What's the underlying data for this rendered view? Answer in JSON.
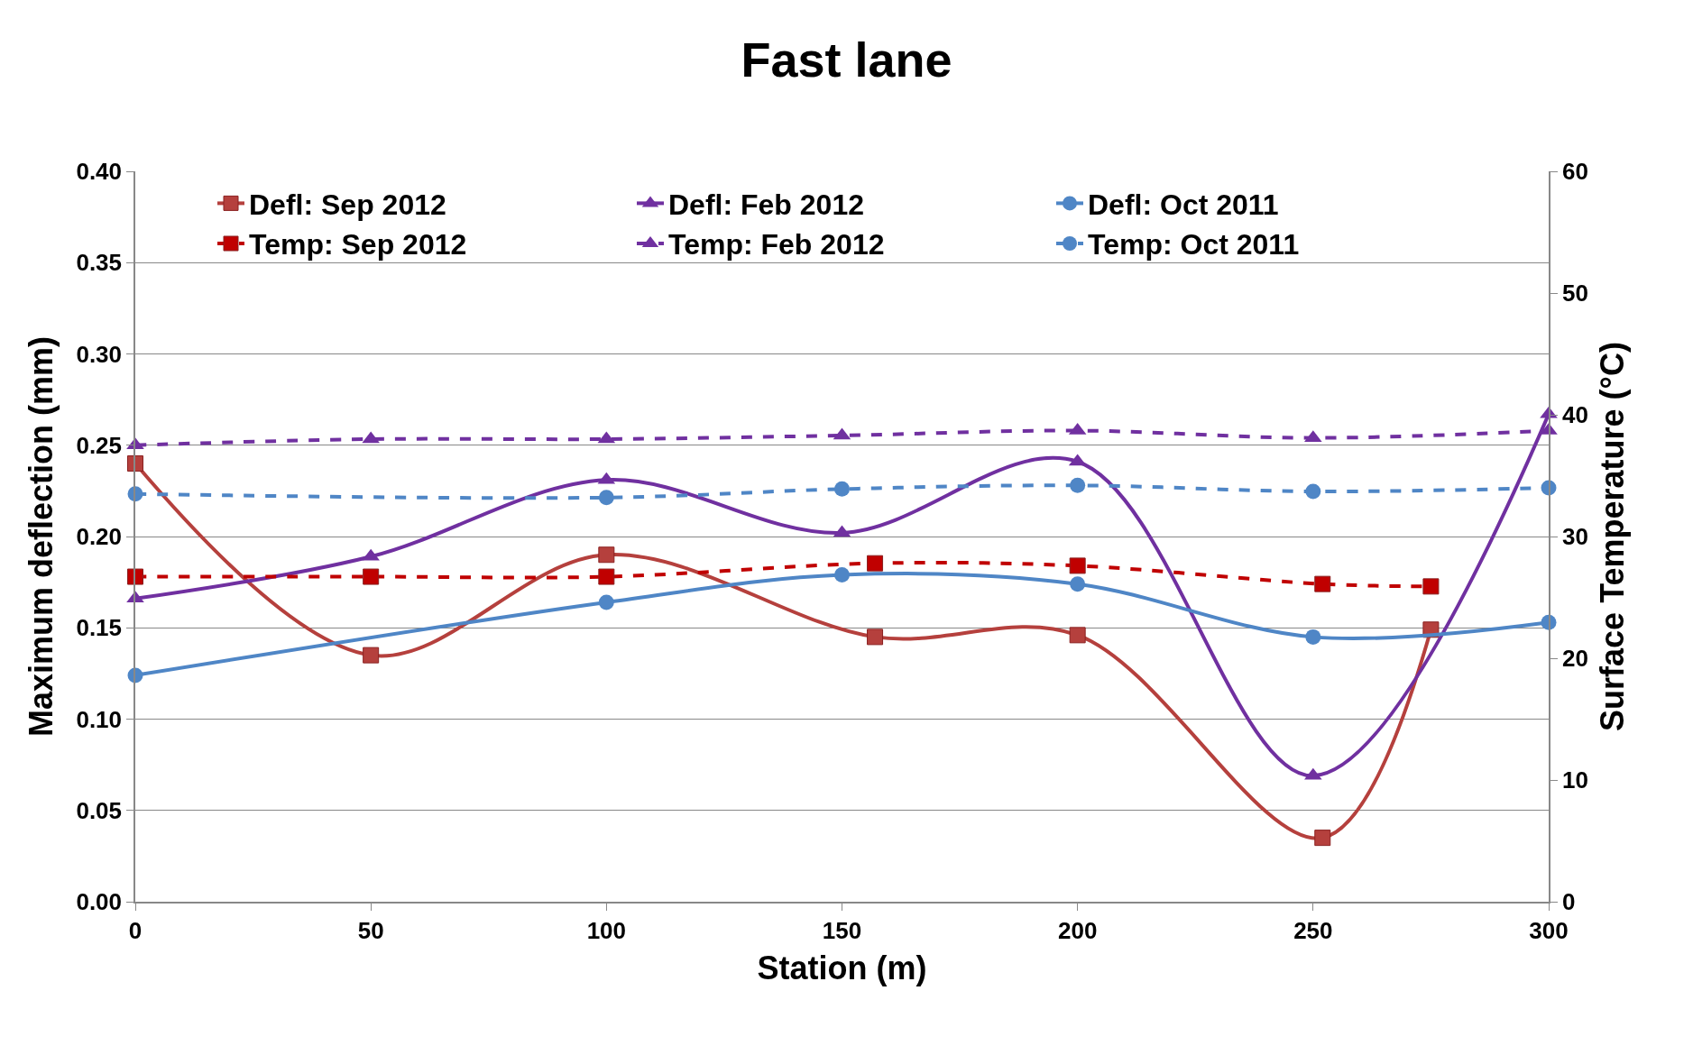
{
  "chart_data": {
    "type": "line",
    "title": "Fast lane",
    "xlabel": "Station (m)",
    "ylabel": "Maximum deflection (mm)",
    "y2label": "Surface Temperature (°C)",
    "xlim": [
      0,
      300
    ],
    "xticks": [
      0,
      50,
      100,
      150,
      200,
      250,
      300
    ],
    "ylim": [
      0,
      0.4
    ],
    "yticks": [
      {
        "value": 0,
        "label": "0.00"
      },
      0.05,
      {
        "value": 0.1,
        "label": "0.10"
      },
      0.15,
      {
        "value": 0.2,
        "label": "0.20"
      },
      0.25,
      {
        "value": 0.3,
        "label": "0.30"
      },
      0.35,
      {
        "value": 0.4,
        "label": "0.40"
      }
    ],
    "y2lim": [
      0,
      60
    ],
    "y2ticks": [
      0,
      10,
      20,
      30,
      40,
      50,
      60
    ],
    "grid": "y",
    "legend": "top",
    "series": [
      {
        "name": "Defl: Sep 2012",
        "color": "#b5403d",
        "marker": "square",
        "line_style": "solid",
        "x": [
          0,
          50,
          100,
          157,
          200,
          252,
          275
        ],
        "values": [
          0.24,
          0.135,
          0.19,
          0.145,
          0.146,
          0.035,
          0.149
        ]
      },
      {
        "name": "Defl: Feb 2012",
        "color": "#7030a0",
        "marker": "triangle",
        "line_style": "solid",
        "x": [
          0,
          50,
          100,
          150,
          200,
          250,
          300
        ],
        "values": [
          0.166,
          0.189,
          0.231,
          0.202,
          0.241,
          0.069,
          0.267
        ]
      },
      {
        "name": "Defl: Oct 2011",
        "color": "#4f86c6",
        "marker": "circle",
        "line_style": "solid",
        "x": [
          0,
          100,
          150,
          200,
          250,
          300
        ],
        "values": [
          0.124,
          0.164,
          0.179,
          0.174,
          0.145,
          0.153
        ]
      },
      {
        "name": "Temp: Sep 2012",
        "color": "#c00000",
        "marker": "square",
        "line_style": "dashed",
        "axis": "y2",
        "x": [
          0,
          50,
          100,
          157,
          200,
          252,
          275
        ],
        "values": [
          26.7,
          26.7,
          26.7,
          27.8,
          27.6,
          26.1,
          25.9
        ]
      },
      {
        "name": "Temp: Feb 2012",
        "color": "#7030a0",
        "marker": "triangle",
        "line_style": "dashed",
        "axis": "y2",
        "x": [
          0,
          50,
          100,
          150,
          200,
          250,
          300
        ],
        "values": [
          37.5,
          38.0,
          38.0,
          38.3,
          38.7,
          38.1,
          38.7
        ]
      },
      {
        "name": "Temp: Oct 2011",
        "color": "#4f86c6",
        "marker": "circle",
        "line_style": "dashed",
        "axis": "y2",
        "x": [
          0,
          100,
          150,
          200,
          250,
          300
        ],
        "values": [
          33.5,
          33.2,
          33.9,
          34.2,
          33.7,
          34.0
        ]
      }
    ]
  }
}
